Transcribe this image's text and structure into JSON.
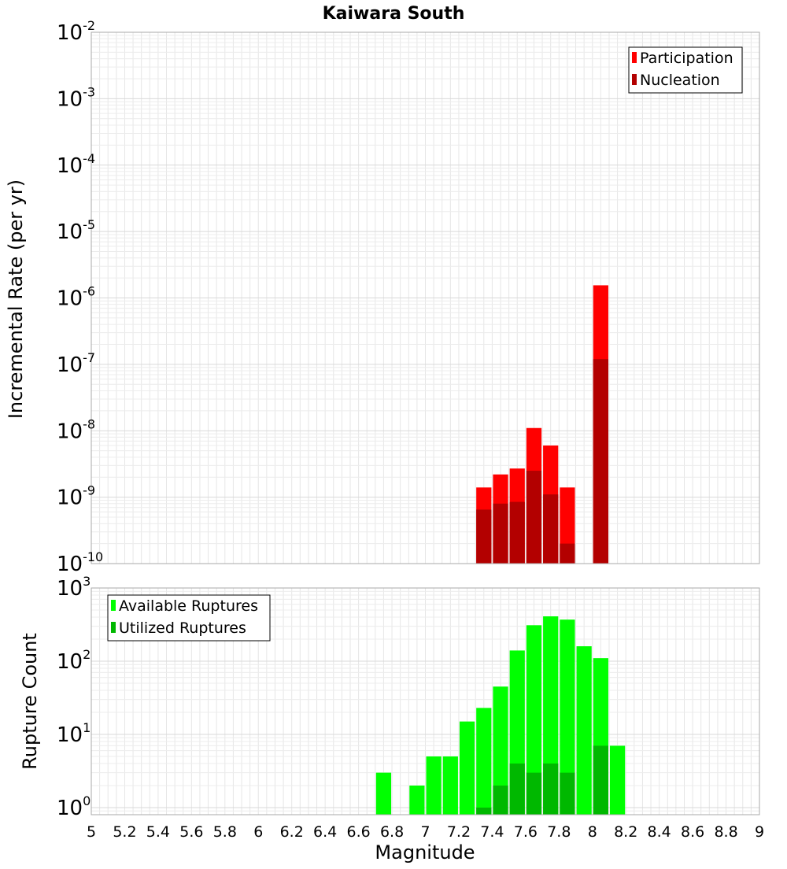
{
  "chart_data": [
    {
      "type": "bar",
      "title": "Kaiwara South",
      "ylabel": "Incremental Rate (per yr)",
      "xlabel": "",
      "y_scale": "log",
      "ylim": [
        1e-10,
        0.01
      ],
      "xlim": [
        5,
        9
      ],
      "grid": true,
      "legend_position": "top-right",
      "x_ticks": [
        "5",
        "5.2",
        "5.4",
        "5.6",
        "5.8",
        "6",
        "6.2",
        "6.4",
        "6.6",
        "6.8",
        "7",
        "7.2",
        "7.4",
        "7.6",
        "7.8",
        "8",
        "8.2",
        "8.4",
        "8.6",
        "8.8",
        "9"
      ],
      "y_ticks": [
        {
          "base": "10",
          "exp": "-10",
          "value": 1e-10
        },
        {
          "base": "10",
          "exp": "-9",
          "value": 1e-09
        },
        {
          "base": "10",
          "exp": "-8",
          "value": 1e-08
        },
        {
          "base": "10",
          "exp": "-7",
          "value": 1e-07
        },
        {
          "base": "10",
          "exp": "-6",
          "value": 1e-06
        },
        {
          "base": "10",
          "exp": "-5",
          "value": 1e-05
        },
        {
          "base": "10",
          "exp": "-4",
          "value": 0.0001
        },
        {
          "base": "10",
          "exp": "-3",
          "value": 0.001
        },
        {
          "base": "10",
          "exp": "-2",
          "value": 0.01
        }
      ],
      "series": [
        {
          "name": "Participation",
          "color": "#ff0000",
          "x": [
            7.35,
            7.45,
            7.55,
            7.65,
            7.75,
            7.85,
            8.05
          ],
          "values": [
            1.4e-09,
            2.2e-09,
            2.7e-09,
            1.1e-08,
            6e-09,
            1.4e-09,
            1.55e-06
          ]
        },
        {
          "name": "Nucleation",
          "color": "#b30000",
          "x": [
            7.35,
            7.45,
            7.55,
            7.65,
            7.75,
            7.85,
            8.05
          ],
          "values": [
            6.5e-10,
            8e-10,
            8.5e-10,
            2.5e-09,
            1.1e-09,
            2e-10,
            1.2e-07
          ]
        }
      ]
    },
    {
      "type": "bar",
      "title": "",
      "ylabel": "Rupture Count",
      "xlabel": "Magnitude",
      "y_scale": "log",
      "ylim": [
        0.8,
        1000
      ],
      "xlim": [
        5,
        9
      ],
      "grid": true,
      "legend_position": "top-left",
      "x_ticks": [
        "5",
        "5.2",
        "5.4",
        "5.6",
        "5.8",
        "6",
        "6.2",
        "6.4",
        "6.6",
        "6.8",
        "7",
        "7.2",
        "7.4",
        "7.6",
        "7.8",
        "8",
        "8.2",
        "8.4",
        "8.6",
        "8.8",
        "9"
      ],
      "y_ticks": [
        {
          "base": "10",
          "exp": "0",
          "value": 1
        },
        {
          "base": "10",
          "exp": "1",
          "value": 10
        },
        {
          "base": "10",
          "exp": "2",
          "value": 100
        },
        {
          "base": "10",
          "exp": "3",
          "value": 1000
        }
      ],
      "series": [
        {
          "name": "Available Ruptures",
          "color": "#00ff00",
          "x": [
            6.75,
            6.95,
            7.05,
            7.15,
            7.25,
            7.35,
            7.45,
            7.55,
            7.65,
            7.75,
            7.85,
            7.95,
            8.05,
            8.15
          ],
          "values": [
            3,
            2,
            5,
            5,
            15,
            23,
            45,
            140,
            310,
            410,
            370,
            160,
            110,
            7
          ]
        },
        {
          "name": "Utilized Ruptures",
          "color": "#00b800",
          "x": [
            7.35,
            7.45,
            7.55,
            7.65,
            7.75,
            7.85,
            8.05
          ],
          "values": [
            1,
            2,
            4,
            3,
            4,
            3,
            7
          ]
        }
      ]
    }
  ]
}
